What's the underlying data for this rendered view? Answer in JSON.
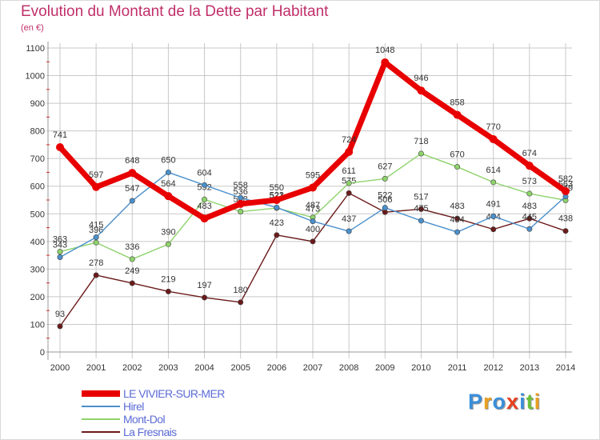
{
  "title": "Evolution du Montant de la Dette par Habitant",
  "unit": "(en €)",
  "logo": "Proxiti",
  "colors": {
    "title": "#c0306a",
    "grid": "#c8c8c8",
    "axis_text": "#333333",
    "legend_text": "#5b6bd6"
  },
  "chart_data": {
    "type": "line",
    "title": "Evolution du Montant de la Dette par Habitant",
    "ylabel": "(en €)",
    "xlabel": "",
    "x": [
      "2000",
      "2001",
      "2002",
      "2003",
      "2004",
      "2005",
      "2006",
      "2007",
      "2008",
      "2009",
      "2010",
      "2011",
      "2012",
      "2013",
      "2014"
    ],
    "ylim": [
      0,
      1100
    ],
    "yticks": [
      0,
      100,
      200,
      300,
      400,
      500,
      600,
      700,
      800,
      900,
      1000,
      1100
    ],
    "grid": true,
    "legend_position": "bottom-left",
    "series": [
      {
        "name": "La Fresnais",
        "color": "#6b1a1a",
        "values": [
          93,
          278,
          249,
          219,
          197,
          180,
          423,
          400,
          575,
          506,
          517,
          483,
          444,
          483,
          438
        ],
        "labels": [
          "93",
          "278",
          "249",
          "219",
          "197",
          "180",
          "423",
          "400",
          "575",
          "506",
          "517",
          "483",
          "444",
          "483",
          "438"
        ]
      },
      {
        "name": "Mont-Dol",
        "color": "#8ed36b",
        "values": [
          363,
          396,
          336,
          390,
          552,
          508,
          521,
          487,
          611,
          627,
          718,
          670,
          614,
          573,
          549
        ],
        "labels": [
          "363",
          "396",
          "336",
          "390",
          "552",
          "508",
          "521",
          "487",
          "611",
          "627",
          "718",
          "670",
          "614",
          "573",
          "549"
        ]
      },
      {
        "name": "Hirel",
        "color": "#4a90cc",
        "values": [
          343,
          415,
          547,
          650,
          604,
          558,
          523,
          473,
          437,
          522,
          475,
          434,
          491,
          445,
          563
        ],
        "labels": [
          "343",
          "415",
          "547",
          "650",
          "604",
          "558",
          "523",
          "473",
          "437",
          "522",
          "475",
          "434",
          "491",
          "445",
          "563"
        ]
      },
      {
        "name": "LE VIVIER-SUR-MER",
        "color": "#e80000",
        "values": [
          741,
          597,
          648,
          564,
          483,
          536,
          550,
          595,
          724,
          1048,
          946,
          858,
          770,
          674,
          582
        ],
        "labels": [
          "741",
          "597",
          "648",
          "564",
          "483",
          "536",
          "550",
          "595",
          "724",
          "1048",
          "946",
          "858",
          "770",
          "674",
          "582"
        ]
      }
    ],
    "legend": [
      "LE VIVIER-SUR-MER",
      "Hirel",
      "Mont-Dol",
      "La Fresnais"
    ]
  }
}
